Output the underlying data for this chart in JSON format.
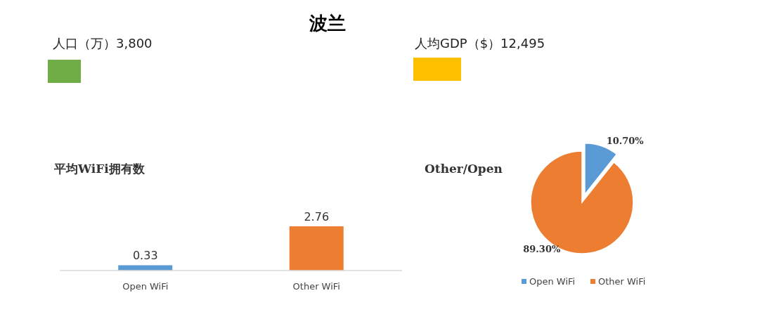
{
  "chart_data": [
    {
      "type": "other",
      "title": "波兰"
    },
    {
      "type": "other",
      "title": "人口（万）3,800",
      "color": "#70ad47"
    },
    {
      "type": "other",
      "title": "人均GDP（$）12,495",
      "color": "#ffc000"
    },
    {
      "type": "bar",
      "title": "平均WiFi拥有数",
      "categories": [
        "Open WiFi",
        "Other WiFi"
      ],
      "values": [
        0.33,
        2.76
      ],
      "colors": [
        "#5b9bd5",
        "#ed7d31"
      ],
      "data_labels": true
    },
    {
      "type": "pie",
      "title": "Other/Open",
      "categories": [
        "Open WiFi",
        "Other WiFi"
      ],
      "values": [
        10.7,
        89.3
      ],
      "colors": [
        "#5b9bd5",
        "#ed7d31"
      ],
      "value_labels": [
        "10.70%",
        "89.30%"
      ],
      "legend": "bottom"
    }
  ]
}
